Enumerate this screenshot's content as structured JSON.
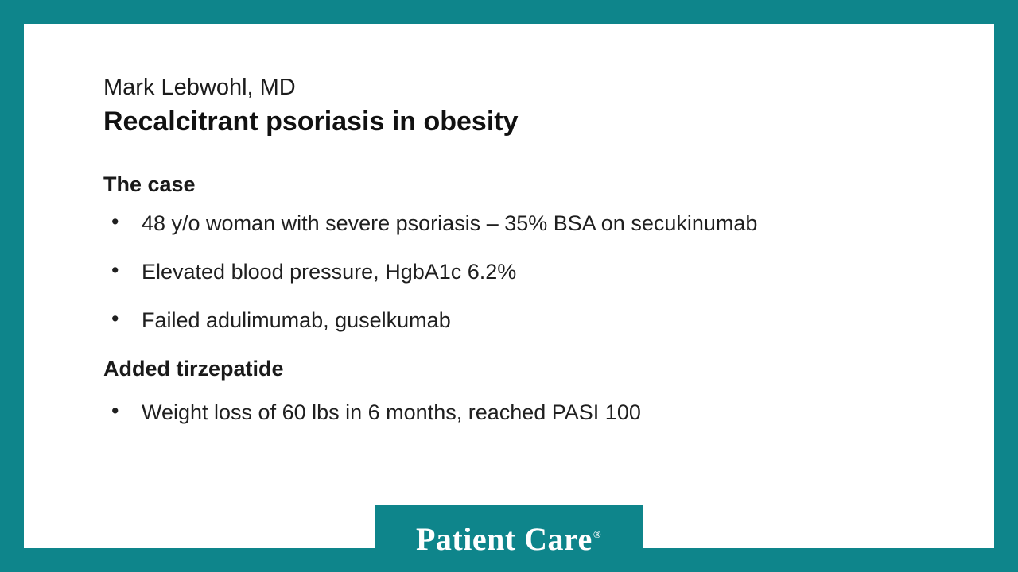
{
  "slide": {
    "speaker": "Mark Lebwohl, MD",
    "title": "Recalcitrant psoriasis in obesity",
    "sections": {
      "case_heading": "The case",
      "added_heading": "Added tirzepatide"
    },
    "case_bullets": [
      "48 y/o woman with severe psoriasis – 35% BSA on secukinumab",
      "Elevated blood pressure, HgbA1c 6.2%",
      "Failed adulimumab, guselkumab"
    ],
    "outcome_bullets": [
      "Weight loss of 60 lbs in 6 months, reached PASI 100"
    ],
    "bullet_glyph": "•",
    "logo": {
      "text": "Patient Care",
      "reg_mark": "®"
    },
    "colors": {
      "teal": "#0e858b",
      "text": "#1a1a1a",
      "background": "#ffffff"
    }
  }
}
